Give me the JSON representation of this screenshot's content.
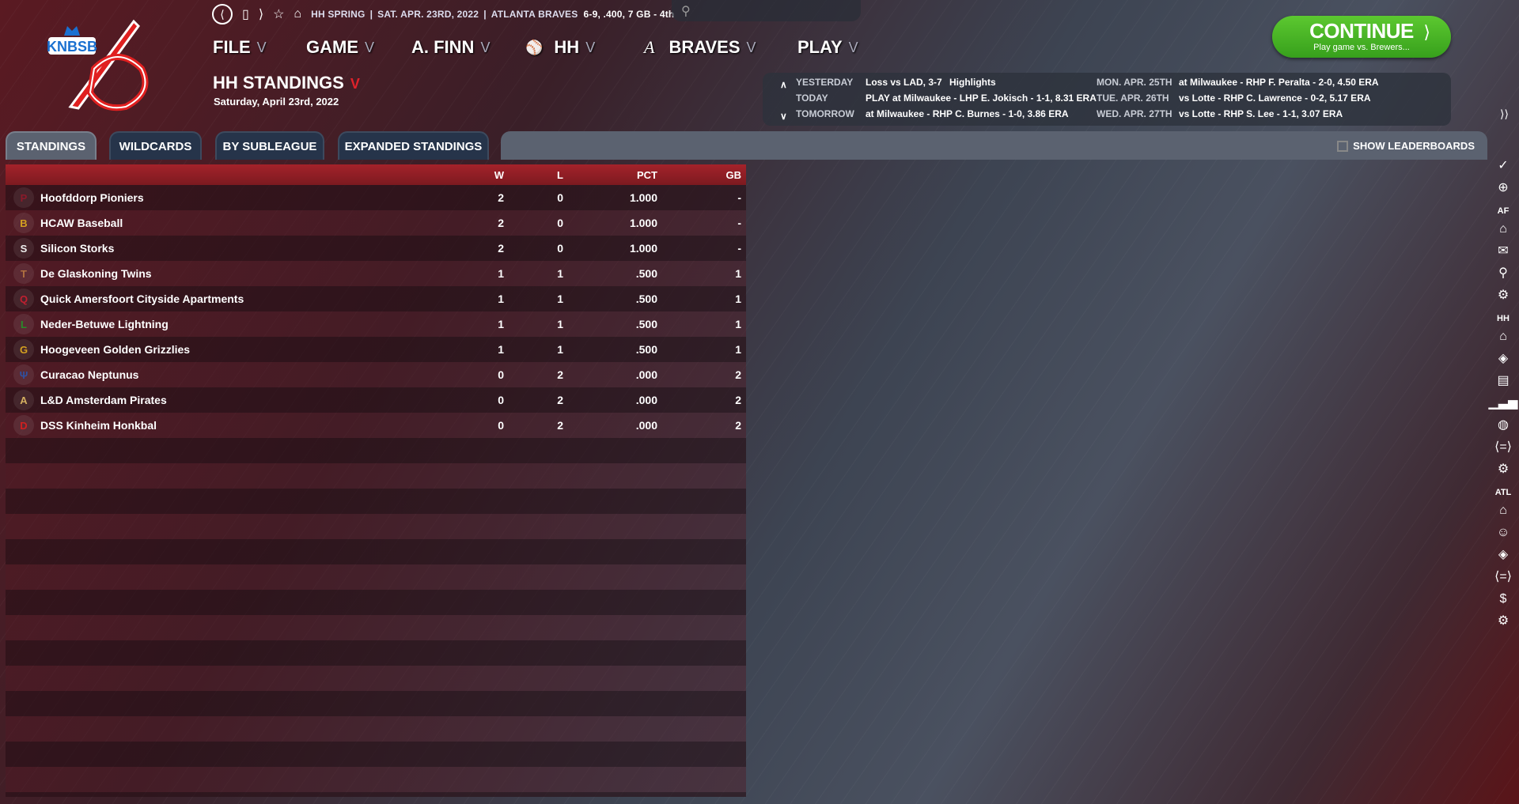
{
  "logo_text": "KNBSB",
  "topbar": {
    "league": "HH SPRING",
    "date": "SAT. APR. 23RD, 2022",
    "team": "ATLANTA BRAVES",
    "record": "6-9, .400, 7 GB - 4th"
  },
  "menu": [
    "FILE",
    "GAME",
    "A. FINN",
    "HH",
    "BRAVES",
    "PLAY"
  ],
  "page": {
    "title": "HH STANDINGS",
    "date": "Saturday, April 23rd, 2022"
  },
  "continue": {
    "label": "CONTINUE",
    "sub": "Play game vs. Brewers..."
  },
  "schedule": {
    "left": [
      {
        "label": "YESTERDAY",
        "text": "Loss vs LAD, 3-7",
        "extra": "Highlights"
      },
      {
        "label": "TODAY",
        "text": "PLAY at Milwaukee - LHP E. Jokisch - 1-1, 8.31 ERA"
      },
      {
        "label": "TOMORROW",
        "text": "at Milwaukee - RHP C. Burnes - 1-0, 3.86 ERA"
      }
    ],
    "right": [
      {
        "label": "MON. APR. 25TH",
        "text": "at Milwaukee - RHP F. Peralta - 2-0, 4.50 ERA"
      },
      {
        "label": "TUE. APR. 26TH",
        "text": "vs Lotte - RHP C. Lawrence - 0-2, 5.17 ERA"
      },
      {
        "label": "WED. APR. 27TH",
        "text": "vs Lotte - RHP S. Lee - 1-1, 3.07 ERA"
      }
    ]
  },
  "tabs": [
    "STANDINGS",
    "WILDCARDS",
    "BY SUBLEAGUE",
    "EXPANDED STANDINGS"
  ],
  "show_leaderboards": "SHOW LEADERBOARDS",
  "table": {
    "headers": [
      "W",
      "L",
      "PCT",
      "GB"
    ],
    "rows": [
      {
        "team": "Hoofddorp Pioniers",
        "w": "2",
        "l": "0",
        "pct": "1.000",
        "gb": "-",
        "logo": "P",
        "color": "#8b1a2a"
      },
      {
        "team": "HCAW Baseball",
        "w": "2",
        "l": "0",
        "pct": "1.000",
        "gb": "-",
        "logo": "B",
        "color": "#d4a020"
      },
      {
        "team": "Silicon Storks",
        "w": "2",
        "l": "0",
        "pct": "1.000",
        "gb": "-",
        "logo": "S",
        "color": "#eeeeee"
      },
      {
        "team": "De Glaskoning Twins",
        "w": "1",
        "l": "1",
        "pct": ".500",
        "gb": "1",
        "logo": "T",
        "color": "#b07040"
      },
      {
        "team": "Quick Amersfoort Cityside Apartments",
        "w": "1",
        "l": "1",
        "pct": ".500",
        "gb": "1",
        "logo": "Q",
        "color": "#c02030"
      },
      {
        "team": "Neder-Betuwe Lightning",
        "w": "1",
        "l": "1",
        "pct": ".500",
        "gb": "1",
        "logo": "L",
        "color": "#2a8a2a"
      },
      {
        "team": "Hoogeveen Golden Grizzlies",
        "w": "1",
        "l": "1",
        "pct": ".500",
        "gb": "1",
        "logo": "G",
        "color": "#d4a020"
      },
      {
        "team": "Curacao Neptunus",
        "w": "0",
        "l": "2",
        "pct": ".000",
        "gb": "2",
        "logo": "Ψ",
        "color": "#3050a0"
      },
      {
        "team": "L&D Amsterdam Pirates",
        "w": "0",
        "l": "2",
        "pct": ".000",
        "gb": "2",
        "logo": "A",
        "color": "#d4b060"
      },
      {
        "team": "DSS Kinheim Honkbal",
        "w": "0",
        "l": "2",
        "pct": ".000",
        "gb": "2",
        "logo": "D",
        "color": "#d02020"
      }
    ]
  },
  "sidebar": {
    "groups": [
      "AF",
      "HH",
      "ATL"
    ]
  }
}
